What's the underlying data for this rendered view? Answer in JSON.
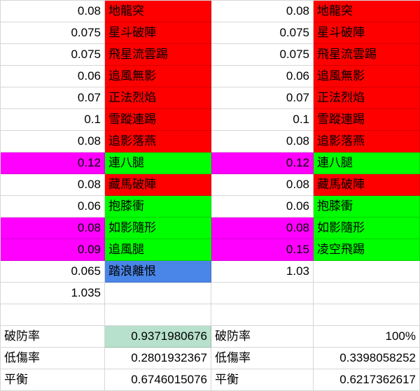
{
  "colors": {
    "red": "#ff0000",
    "green": "#00ff00",
    "magenta": "#ff00ff",
    "blue": "#4a86e8",
    "lightGreen": "#b7e1cd",
    "gridline": "#d6d6d6",
    "text": "#000000"
  },
  "grid": {
    "rows": [
      {
        "cells": [
          {
            "text": "0.08",
            "align": "r",
            "bg": null,
            "kind": "move-value"
          },
          {
            "text": "地龍突",
            "align": "l",
            "bg": "red",
            "kind": "move-name"
          },
          {
            "text": "0.08",
            "align": "r",
            "bg": null,
            "kind": "move-value"
          },
          {
            "text": "地龍突",
            "align": "l",
            "bg": "red",
            "kind": "move-name"
          }
        ]
      },
      {
        "cells": [
          {
            "text": "0.075",
            "align": "r",
            "bg": null,
            "kind": "move-value"
          },
          {
            "text": "星斗破陣",
            "align": "l",
            "bg": "red",
            "kind": "move-name"
          },
          {
            "text": "0.075",
            "align": "r",
            "bg": null,
            "kind": "move-value"
          },
          {
            "text": "星斗破陣",
            "align": "l",
            "bg": "red",
            "kind": "move-name"
          }
        ]
      },
      {
        "cells": [
          {
            "text": "0.075",
            "align": "r",
            "bg": null,
            "kind": "move-value"
          },
          {
            "text": "飛星流雲踢",
            "align": "l",
            "bg": "red",
            "kind": "move-name"
          },
          {
            "text": "0.075",
            "align": "r",
            "bg": null,
            "kind": "move-value"
          },
          {
            "text": "飛星流雲踢",
            "align": "l",
            "bg": "red",
            "kind": "move-name"
          }
        ]
      },
      {
        "cells": [
          {
            "text": "0.06",
            "align": "r",
            "bg": null,
            "kind": "move-value"
          },
          {
            "text": "追風無影",
            "align": "l",
            "bg": "red",
            "kind": "move-name"
          },
          {
            "text": "0.06",
            "align": "r",
            "bg": null,
            "kind": "move-value"
          },
          {
            "text": "追風無影",
            "align": "l",
            "bg": "red",
            "kind": "move-name"
          }
        ]
      },
      {
        "cells": [
          {
            "text": "0.07",
            "align": "r",
            "bg": null,
            "kind": "move-value"
          },
          {
            "text": "正法烈焰",
            "align": "l",
            "bg": "red",
            "kind": "move-name"
          },
          {
            "text": "0.07",
            "align": "r",
            "bg": null,
            "kind": "move-value"
          },
          {
            "text": "正法烈焰",
            "align": "l",
            "bg": "red",
            "kind": "move-name"
          }
        ]
      },
      {
        "cells": [
          {
            "text": "0.1",
            "align": "r",
            "bg": null,
            "kind": "move-value"
          },
          {
            "text": "雪蹤連踢",
            "align": "l",
            "bg": "red",
            "kind": "move-name"
          },
          {
            "text": "0.1",
            "align": "r",
            "bg": null,
            "kind": "move-value"
          },
          {
            "text": "雪蹤連踢",
            "align": "l",
            "bg": "red",
            "kind": "move-name"
          }
        ]
      },
      {
        "cells": [
          {
            "text": "0.08",
            "align": "r",
            "bg": null,
            "kind": "move-value"
          },
          {
            "text": "追影落燕",
            "align": "l",
            "bg": "red",
            "kind": "move-name"
          },
          {
            "text": "0.08",
            "align": "r",
            "bg": null,
            "kind": "move-value"
          },
          {
            "text": "追影落燕",
            "align": "l",
            "bg": "red",
            "kind": "move-name"
          }
        ]
      },
      {
        "cells": [
          {
            "text": "0.12",
            "align": "r",
            "bg": "magenta",
            "kind": "move-value"
          },
          {
            "text": "連八腿",
            "align": "l",
            "bg": "green",
            "kind": "move-name"
          },
          {
            "text": "0.12",
            "align": "r",
            "bg": "magenta",
            "kind": "move-value"
          },
          {
            "text": "連八腿",
            "align": "l",
            "bg": "green",
            "kind": "move-name"
          }
        ]
      },
      {
        "cells": [
          {
            "text": "0.08",
            "align": "r",
            "bg": null,
            "kind": "move-value"
          },
          {
            "text": "藏馬破陣",
            "align": "l",
            "bg": "red",
            "kind": "move-name"
          },
          {
            "text": "0.08",
            "align": "r",
            "bg": null,
            "kind": "move-value"
          },
          {
            "text": "藏馬破陣",
            "align": "l",
            "bg": "red",
            "kind": "move-name"
          }
        ]
      },
      {
        "cells": [
          {
            "text": "0.06",
            "align": "r",
            "bg": null,
            "kind": "move-value"
          },
          {
            "text": "抱膝衝",
            "align": "l",
            "bg": "green",
            "kind": "move-name"
          },
          {
            "text": "0.06",
            "align": "r",
            "bg": null,
            "kind": "move-value"
          },
          {
            "text": "抱膝衝",
            "align": "l",
            "bg": "green",
            "kind": "move-name"
          }
        ]
      },
      {
        "cells": [
          {
            "text": "0.08",
            "align": "r",
            "bg": "magenta",
            "kind": "move-value"
          },
          {
            "text": "如影隨形",
            "align": "l",
            "bg": "green",
            "kind": "move-name"
          },
          {
            "text": "0.08",
            "align": "r",
            "bg": "magenta",
            "kind": "move-value"
          },
          {
            "text": "如影隨形",
            "align": "l",
            "bg": "green",
            "kind": "move-name"
          }
        ]
      },
      {
        "cells": [
          {
            "text": "0.09",
            "align": "r",
            "bg": "magenta",
            "kind": "move-value"
          },
          {
            "text": "追風腿",
            "align": "l",
            "bg": "green",
            "kind": "move-name"
          },
          {
            "text": "0.15",
            "align": "r",
            "bg": "magenta",
            "kind": "move-value"
          },
          {
            "text": "凌空飛踢",
            "align": "l",
            "bg": "green",
            "kind": "move-name"
          }
        ]
      },
      {
        "cells": [
          {
            "text": "0.065",
            "align": "r",
            "bg": null,
            "kind": "move-value"
          },
          {
            "text": "踏浪離恨",
            "align": "l",
            "bg": "blue",
            "kind": "move-name"
          },
          {
            "text": "1.03",
            "align": "r",
            "bg": null,
            "kind": "total-value"
          },
          {
            "text": "",
            "align": "l",
            "bg": null,
            "kind": "empty"
          }
        ]
      },
      {
        "cells": [
          {
            "text": "1.035",
            "align": "r",
            "bg": null,
            "kind": "total-value"
          },
          {
            "text": "",
            "align": "l",
            "bg": null,
            "kind": "empty"
          },
          {
            "text": "",
            "align": "l",
            "bg": null,
            "kind": "empty"
          },
          {
            "text": "",
            "align": "l",
            "bg": null,
            "kind": "empty"
          }
        ]
      },
      {
        "cells": [
          {
            "text": "",
            "align": "l",
            "bg": null,
            "kind": "empty"
          },
          {
            "text": "",
            "align": "l",
            "bg": null,
            "kind": "empty"
          },
          {
            "text": "",
            "align": "l",
            "bg": null,
            "kind": "empty"
          },
          {
            "text": "",
            "align": "l",
            "bg": null,
            "kind": "empty"
          }
        ]
      },
      {
        "cells": [
          {
            "text": "破防率",
            "align": "l",
            "bg": null,
            "kind": "stat-label"
          },
          {
            "text": "0.9371980676",
            "align": "r",
            "bg": "lightGreen",
            "kind": "stat-value"
          },
          {
            "text": "破防率",
            "align": "l",
            "bg": null,
            "kind": "stat-label"
          },
          {
            "text": "100%",
            "align": "r",
            "bg": null,
            "kind": "stat-value"
          }
        ]
      },
      {
        "cells": [
          {
            "text": "低傷率",
            "align": "l",
            "bg": null,
            "kind": "stat-label"
          },
          {
            "text": "0.2801932367",
            "align": "r",
            "bg": null,
            "kind": "stat-value"
          },
          {
            "text": "低傷率",
            "align": "l",
            "bg": null,
            "kind": "stat-label"
          },
          {
            "text": "0.3398058252",
            "align": "r",
            "bg": null,
            "kind": "stat-value"
          }
        ]
      },
      {
        "cells": [
          {
            "text": "平衡",
            "align": "l",
            "bg": null,
            "kind": "stat-label"
          },
          {
            "text": "0.6746015076",
            "align": "r",
            "bg": null,
            "kind": "stat-value"
          },
          {
            "text": "平衡",
            "align": "l",
            "bg": null,
            "kind": "stat-label"
          },
          {
            "text": "0.6217362617",
            "align": "r",
            "bg": null,
            "kind": "stat-value"
          }
        ]
      }
    ]
  }
}
